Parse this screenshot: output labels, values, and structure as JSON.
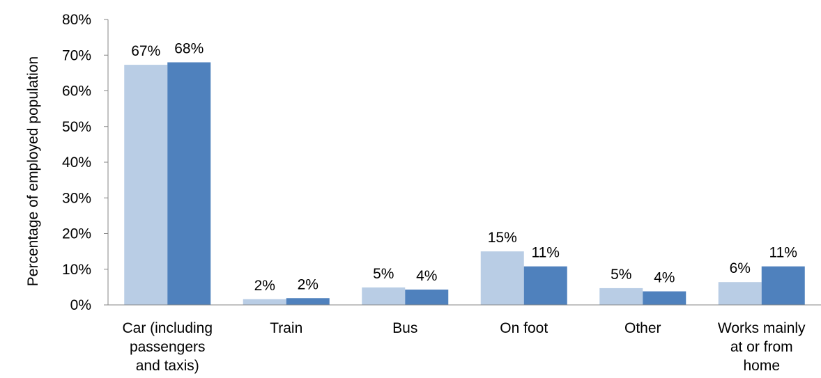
{
  "chart_data": {
    "type": "bar",
    "title": "",
    "xlabel": "",
    "ylabel": "Percentage of employed population",
    "ylim": [
      0,
      80
    ],
    "y_ticks": [
      0,
      10,
      20,
      30,
      40,
      50,
      60,
      70,
      80
    ],
    "y_tick_labels": [
      "0%",
      "10%",
      "20%",
      "30%",
      "40%",
      "50%",
      "60%",
      "70%",
      "80%"
    ],
    "categories": [
      [
        "Car (including",
        "passengers",
        "and taxis)"
      ],
      [
        "Train"
      ],
      [
        "Bus"
      ],
      [
        "On foot"
      ],
      [
        "Other"
      ],
      [
        "Works mainly",
        "at or from",
        "home"
      ]
    ],
    "series": [
      {
        "color": "#b9cde5",
        "values": [
          67.3,
          1.6,
          4.9,
          15.0,
          4.7,
          6.4
        ],
        "labels": [
          "67%",
          "2%",
          "5%",
          "15%",
          "5%",
          "6%"
        ]
      },
      {
        "color": "#4f81bd",
        "values": [
          68.0,
          1.9,
          4.3,
          10.8,
          3.8,
          10.8
        ],
        "labels": [
          "68%",
          "2%",
          "4%",
          "11%",
          "4%",
          "11%"
        ]
      }
    ],
    "grid": false,
    "legend": "none",
    "axis_color": "#868686"
  }
}
